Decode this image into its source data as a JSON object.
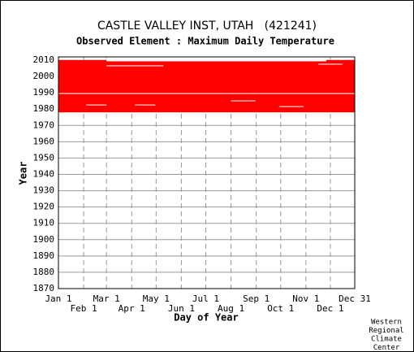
{
  "chart_data": {
    "type": "availability",
    "title": "CASTLE VALLEY INST, UTAH   (421241)",
    "subtitle": "Observed Element : Maximum Daily Temperature",
    "ylabel": "Year",
    "xlabel": "Day of Year",
    "credit": [
      "Western",
      "Regional",
      "Climate",
      "Center"
    ],
    "color": "#ff0000",
    "xlim": [
      1,
      365
    ],
    "ylim": [
      1870,
      2012
    ],
    "xticks": [
      {
        "value": 1,
        "label": "Jan 1"
      },
      {
        "value": 32,
        "label": "Feb 1"
      },
      {
        "value": 60,
        "label": "Mar 1"
      },
      {
        "value": 91,
        "label": "Apr 1"
      },
      {
        "value": 121,
        "label": "May 1"
      },
      {
        "value": 152,
        "label": "Jun 1"
      },
      {
        "value": 182,
        "label": "Jul 1"
      },
      {
        "value": 213,
        "label": "Aug 1"
      },
      {
        "value": 244,
        "label": "Sep 1"
      },
      {
        "value": 274,
        "label": "Oct 1"
      },
      {
        "value": 305,
        "label": "Nov 1"
      },
      {
        "value": 335,
        "label": "Dec 1"
      },
      {
        "value": 365,
        "label": "Dec 31"
      }
    ],
    "yticks": [
      1870,
      1880,
      1890,
      1900,
      1910,
      1920,
      1930,
      1940,
      1950,
      1960,
      1970,
      1980,
      1990,
      2000,
      2010
    ],
    "observed": [
      {
        "years": [
          1978,
          2010
        ],
        "days": [
          1,
          365
        ]
      }
    ],
    "gaps": [
      {
        "years": [
          1989.3,
          1989.8
        ],
        "days": [
          1,
          365
        ]
      },
      {
        "years": [
          1982.3,
          1982.8
        ],
        "days": [
          35,
          60
        ]
      },
      {
        "years": [
          1982.3,
          1982.8
        ],
        "days": [
          95,
          120
        ]
      },
      {
        "years": [
          1984.8,
          1985.3
        ],
        "days": [
          213,
          243
        ]
      },
      {
        "years": [
          1981.3,
          1981.8
        ],
        "days": [
          272,
          302
        ]
      },
      {
        "years": [
          2006.3,
          2006.8
        ],
        "days": [
          60,
          130
        ]
      },
      {
        "years": [
          2007.3,
          2007.8
        ],
        "days": [
          320,
          350
        ]
      },
      {
        "years": [
          2009.3,
          2012
        ],
        "days": [
          60,
          330
        ]
      }
    ]
  }
}
